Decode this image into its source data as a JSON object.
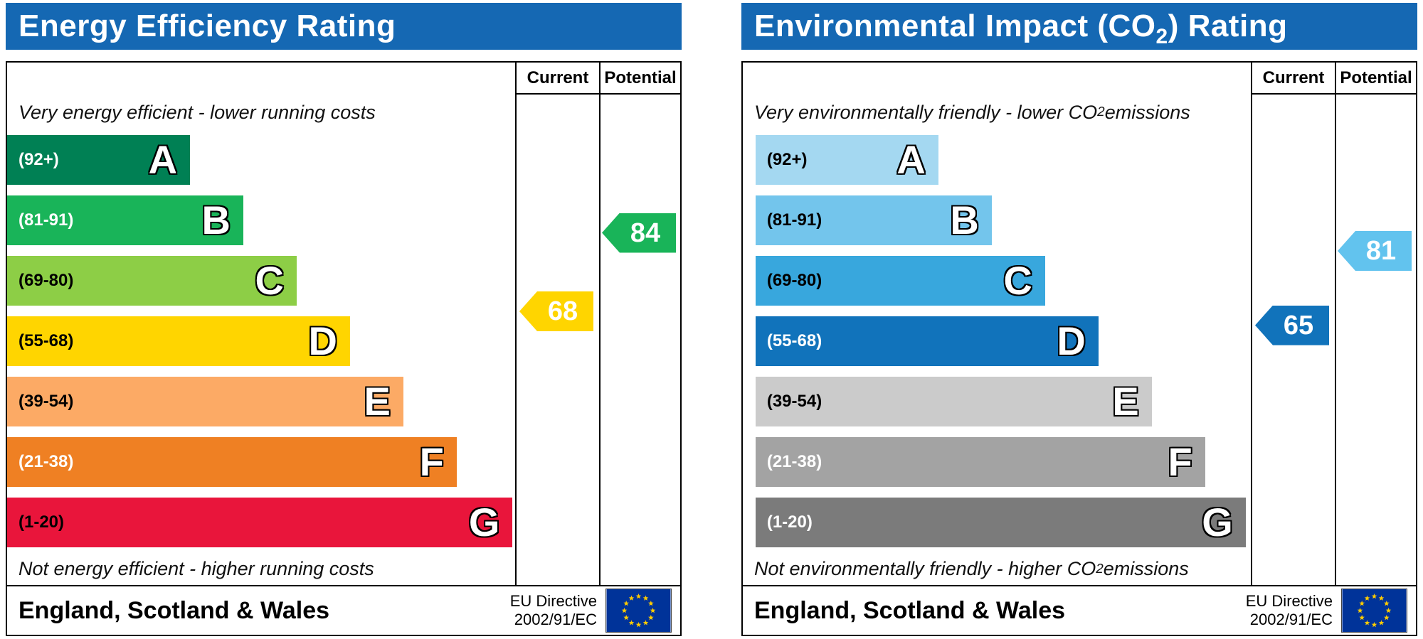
{
  "colors": {
    "header_bg": "#1568b3",
    "border": "#000000",
    "eu_flag_bg": "#003399",
    "eu_star": "#ffcc00",
    "text": "#000000"
  },
  "chart_data": [
    {
      "type": "bar",
      "orientation": "horizontal",
      "subtype": "epc-energy-efficiency",
      "title_pre": "Energy Efficiency Rating",
      "title_sub": "",
      "title_post": "",
      "col_current": "Current",
      "col_potential": "Potential",
      "caption_top_pre": "Very energy efficient - lower running costs",
      "caption_top_sub": "",
      "caption_top_post": "",
      "caption_bottom_pre": "Not energy efficient - higher running costs",
      "caption_bottom_sub": "",
      "caption_bottom_post": "",
      "categories": [
        "A",
        "B",
        "C",
        "D",
        "E",
        "F",
        "G"
      ],
      "bands": [
        {
          "letter": "A",
          "range": "(92+)",
          "min": 92,
          "max": 100,
          "color": "#008054",
          "label_color": "#ffffff",
          "width_pct": 36
        },
        {
          "letter": "B",
          "range": "(81-91)",
          "min": 81,
          "max": 91,
          "color": "#19b459",
          "label_color": "#ffffff",
          "width_pct": 46.5
        },
        {
          "letter": "C",
          "range": "(69-80)",
          "min": 69,
          "max": 80,
          "color": "#8dce46",
          "label_color": "#000000",
          "width_pct": 57
        },
        {
          "letter": "D",
          "range": "(55-68)",
          "min": 55,
          "max": 68,
          "color": "#ffd500",
          "label_color": "#000000",
          "width_pct": 67.5
        },
        {
          "letter": "E",
          "range": "(39-54)",
          "min": 39,
          "max": 54,
          "color": "#fcaa65",
          "label_color": "#000000",
          "width_pct": 78
        },
        {
          "letter": "F",
          "range": "(21-38)",
          "min": 21,
          "max": 38,
          "color": "#ef8023",
          "label_color": "#ffffff",
          "width_pct": 88.5
        },
        {
          "letter": "G",
          "range": "(1-20)",
          "min": 1,
          "max": 20,
          "color": "#e9153b",
          "label_color": "#000000",
          "width_pct": 99.5
        }
      ],
      "bar_indent_pct": 0,
      "current": {
        "value": 68,
        "band": "D",
        "color": "#ffd500"
      },
      "potential": {
        "value": 84,
        "band": "B",
        "color": "#19b459"
      },
      "footer_region": "England, Scotland & Wales",
      "footer_directive_line1": "EU Directive",
      "footer_directive_line2": "2002/91/EC"
    },
    {
      "type": "bar",
      "orientation": "horizontal",
      "subtype": "epc-environmental-impact-co2",
      "title_pre": "Environmental Impact (CO",
      "title_sub": "2",
      "title_post": ") Rating",
      "col_current": "Current",
      "col_potential": "Potential",
      "caption_top_pre": "Very environmentally friendly - lower CO",
      "caption_top_sub": "2",
      "caption_top_post": " emissions",
      "caption_bottom_pre": "Not environmentally friendly - higher CO",
      "caption_bottom_sub": "2",
      "caption_bottom_post": " emissions",
      "categories": [
        "A",
        "B",
        "C",
        "D",
        "E",
        "F",
        "G"
      ],
      "bands": [
        {
          "letter": "A",
          "range": "(92+)",
          "min": 92,
          "max": 100,
          "color": "#a4d8f1",
          "label_color": "#000000",
          "width_pct": 36
        },
        {
          "letter": "B",
          "range": "(81-91)",
          "min": 81,
          "max": 91,
          "color": "#73c5ec",
          "label_color": "#000000",
          "width_pct": 46.5
        },
        {
          "letter": "C",
          "range": "(69-80)",
          "min": 69,
          "max": 80,
          "color": "#38a7dd",
          "label_color": "#000000",
          "width_pct": 57
        },
        {
          "letter": "D",
          "range": "(55-68)",
          "min": 55,
          "max": 68,
          "color": "#1173bb",
          "label_color": "#ffffff",
          "width_pct": 67.5
        },
        {
          "letter": "E",
          "range": "(39-54)",
          "min": 39,
          "max": 54,
          "color": "#cbcbcb",
          "label_color": "#000000",
          "width_pct": 78
        },
        {
          "letter": "F",
          "range": "(21-38)",
          "min": 21,
          "max": 38,
          "color": "#a3a3a3",
          "label_color": "#ffffff",
          "width_pct": 88.5
        },
        {
          "letter": "G",
          "range": "(1-20)",
          "min": 1,
          "max": 20,
          "color": "#7b7b7b",
          "label_color": "#ffffff",
          "width_pct": 96.5
        }
      ],
      "bar_indent_pct": 2.5,
      "current": {
        "value": 65,
        "band": "D",
        "color": "#1173bb"
      },
      "potential": {
        "value": 81,
        "band": "B",
        "color": "#62c3ee"
      },
      "footer_region": "England, Scotland & Wales",
      "footer_directive_line1": "EU Directive",
      "footer_directive_line2": "2002/91/EC"
    }
  ]
}
